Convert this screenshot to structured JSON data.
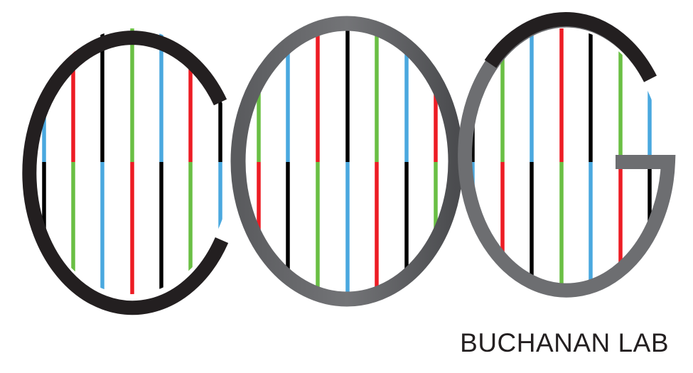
{
  "logo": {
    "icon": "dna-helix-cog-logo-icon",
    "lab_name": "BUCHANAN LAB",
    "colors": {
      "dark_strand": "#231f20",
      "gray_strand": "#6d6e71",
      "black_base": "#000000",
      "red_base": "#ed1c24",
      "green_base": "#6abf44",
      "blue_base": "#4aa8df",
      "text": "#231f20"
    }
  }
}
